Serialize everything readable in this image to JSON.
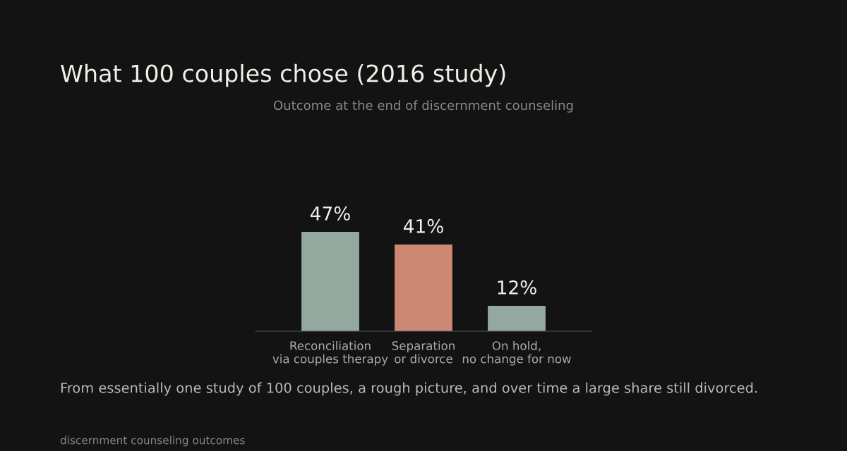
{
  "chart_data": {
    "type": "bar",
    "title": "What 100 couples chose (2016 study)",
    "subtitle": "Outcome at the end of discernment counseling",
    "categories": [
      "Reconciliation\nvia couples therapy",
      "Separation\nor divorce",
      "On hold,\nno change for now"
    ],
    "values": [
      47,
      41,
      12
    ],
    "colors": [
      "#93a89e",
      "#cc8872",
      "#93a89e"
    ],
    "value_labels": [
      "47%",
      "41%",
      "12%"
    ],
    "grid": false,
    "legend": false,
    "tick_labels": "x",
    "annotations": [
      "From essentially one study of 100 couples, a rough picture, and over time a large share still divorced.",
      "discernment counseling outcomes"
    ]
  }
}
